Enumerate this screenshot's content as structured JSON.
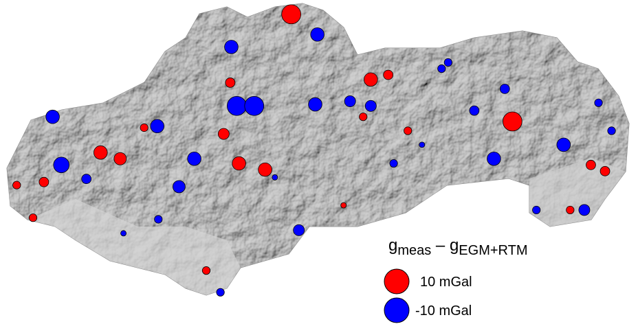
{
  "map": {
    "stations": {
      "lon": [
        19.44,
        21.47,
        20.17,
        19.2,
        18.96,
        17.69,
        17.87,
        17.17,
        16.92,
        17.07,
        18.09,
        18.82,
        22.32,
        22.19,
        22.0,
        18.66,
        20.51,
        20.1,
        20.33,
        18.88,
        18.94,
        19.1,
        18.89,
        19.68,
        17.33,
        17.25,
        18.21,
        18.55,
        18.41,
        19.66,
        21.3,
        21.94,
        22.13,
        19.51,
        20.17,
        19.98,
        21.12,
        21.4,
        18.79,
        21.69,
        17.56,
        20.38,
        20.82,
        18.22,
        20.88,
        19.92,
        19.29,
        17.9,
        20.64,
        22.26,
        22.38
      ],
      "lat": [
        49.54,
        48.85,
        49.12,
        48.54,
        48.58,
        48.65,
        48.61,
        48.46,
        48.44,
        48.23,
        48.81,
        48.77,
        48.53,
        48.57,
        48.28,
        47.89,
        48.79,
        48.88,
        49.15,
        49.1,
        48.95,
        48.95,
        49.33,
        49.41,
        48.57,
        48.88,
        48.82,
        48.61,
        48.43,
        48.96,
        48.61,
        48.7,
        48.28,
        48.15,
        48.95,
        48.98,
        48.92,
        49.06,
        47.75,
        48.28,
        48.48,
        48.58,
        49.19,
        48.22,
        49.23,
        48.31,
        48.49,
        48.13,
        48.7,
        48.97,
        48.79
      ],
      "values": [
        6,
        6,
        3,
        3,
        3,
        3,
        2.5,
        1.5,
        1,
        1,
        1,
        2,
        1.5,
        1.5,
        1,
        1,
        1,
        1,
        1.5,
        1.5,
        -6,
        -6,
        -3,
        -3,
        -4,
        -3,
        -3,
        -3,
        -2.5,
        -3,
        -3,
        -3,
        -2,
        -2,
        -2,
        -2,
        -1.5,
        -1.5,
        -1,
        -1,
        -1.5,
        -1,
        -1,
        -1,
        -1,
        0.5,
        -0.5,
        -0.5,
        -0.5,
        -1,
        -1
      ]
    }
  },
  "legend": {
    "title_parts": [
      "g",
      "meas",
      " – g",
      "EGM+RTM"
    ],
    "items": [
      {
        "value": 10,
        "label": "10 mGal",
        "color": "#ff0000"
      },
      {
        "value": -10,
        "label": "-10 mGal",
        "color": "#0000ff"
      }
    ]
  }
}
